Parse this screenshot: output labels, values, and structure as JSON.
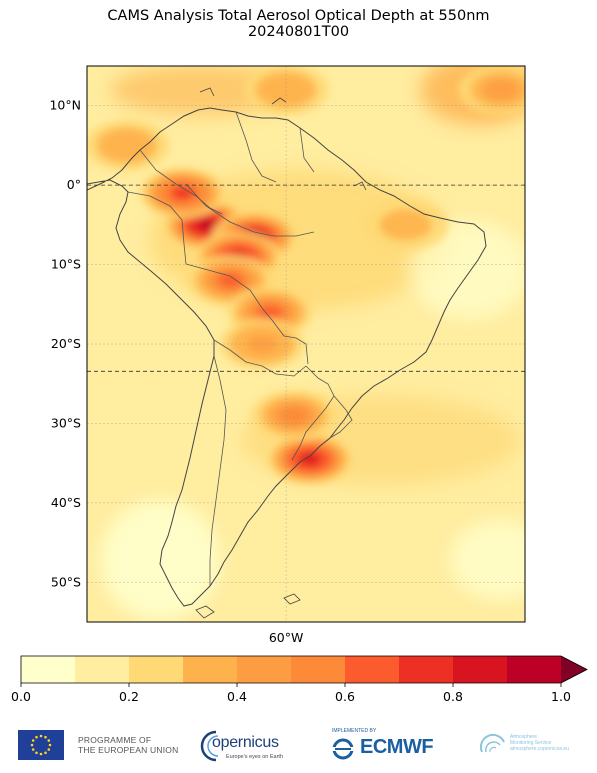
{
  "title": {
    "line1": "CAMS Analysis Total Aerosol Optical Depth at 550nm",
    "line2": "20240801T00"
  },
  "map": {
    "lon_range": [
      -85,
      -30
    ],
    "lat_range": [
      -55,
      15
    ],
    "lat_ticks": [
      {
        "value": 10,
        "label": "10°N"
      },
      {
        "value": 0,
        "label": "0°"
      },
      {
        "value": -10,
        "label": "10°S"
      },
      {
        "value": -20,
        "label": "20°S"
      },
      {
        "value": -30,
        "label": "30°S"
      },
      {
        "value": -40,
        "label": "40°S"
      },
      {
        "value": -50,
        "label": "50°S"
      }
    ],
    "lon_ticks": [
      {
        "value": -60,
        "label": "60°W"
      }
    ],
    "dashed_parallels": [
      0,
      -23.44
    ],
    "ocean_background_level": 0.15,
    "aerosol_plumes": [
      {
        "lon": -70,
        "lat": -5,
        "value": 0.95
      },
      {
        "lon": -64,
        "lat": -6.5,
        "value": 0.9
      },
      {
        "lon": -73,
        "lat": -1,
        "value": 0.75
      },
      {
        "lon": -66,
        "lat": -9,
        "value": 0.85
      },
      {
        "lon": -67,
        "lat": -12,
        "value": 0.6
      },
      {
        "lon": -62,
        "lat": -16,
        "value": 0.6
      },
      {
        "lon": -57,
        "lat": -34.5,
        "value": 0.85
      },
      {
        "lon": -59,
        "lat": -29,
        "value": 0.5
      },
      {
        "lon": -63,
        "lat": -20,
        "value": 0.45
      },
      {
        "lon": -80,
        "lat": 5,
        "value": 0.35
      },
      {
        "lon": -33,
        "lat": 12,
        "value": 0.4
      },
      {
        "lon": -60,
        "lat": 12,
        "value": 0.35
      },
      {
        "lon": -45,
        "lat": -5,
        "value": 0.3
      }
    ]
  },
  "colorbar": {
    "min": 0.0,
    "max": 1.0,
    "tick_values": [
      0.0,
      0.2,
      0.4,
      0.6,
      0.8,
      1.0
    ],
    "tick_labels": [
      "0.0",
      "0.2",
      "0.4",
      "0.6",
      "0.8",
      "1.0"
    ],
    "colors": [
      "#ffffcc",
      "#ffeda0",
      "#fed976",
      "#feb24c",
      "#fd9d43",
      "#fc8a39",
      "#fc5b2e",
      "#ec3023",
      "#d7141f",
      "#bd0026"
    ],
    "extend_color": "#800026"
  },
  "logos": {
    "eu_line1": "PROGRAMME OF",
    "eu_line2": "THE EUROPEAN UNION",
    "copernicus": "opernicus",
    "copernicus_sub": "Europe's eyes on Earth",
    "ecmwf_pre": "IMPLEMENTED BY",
    "ecmwf": "ECMWF",
    "cams_line1": "Atmosphere",
    "cams_line2": "Monitoring Service",
    "cams_line3": "atmosphere.copernicus.eu"
  }
}
